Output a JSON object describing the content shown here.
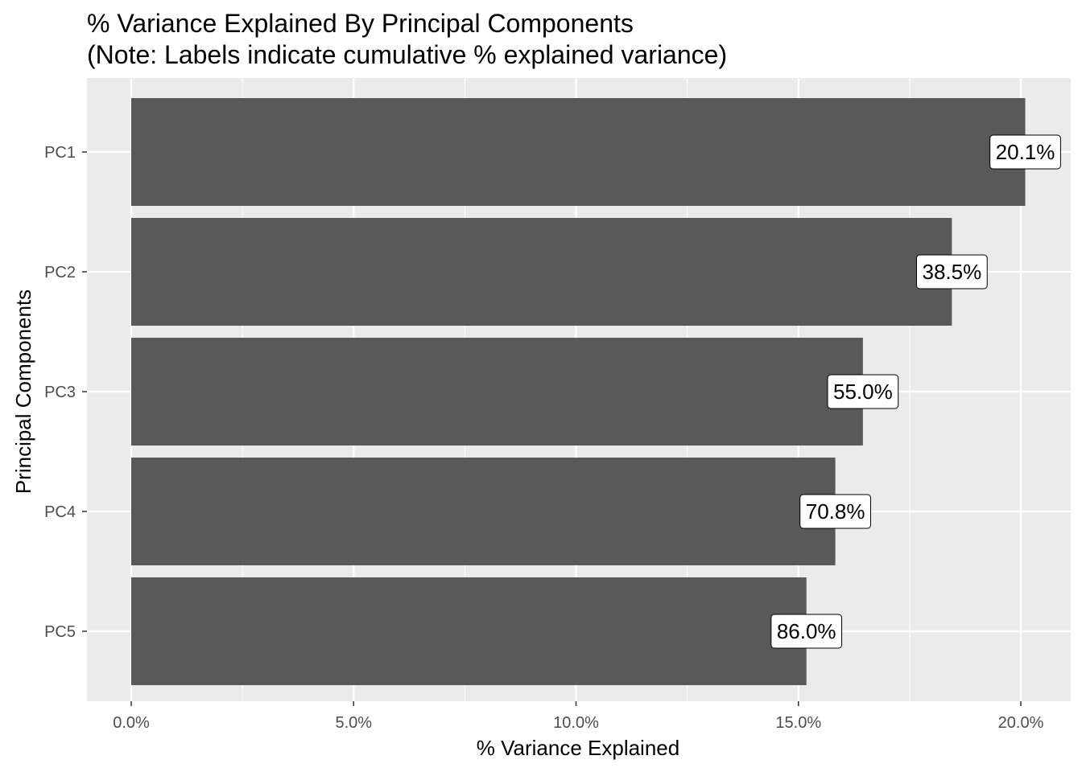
{
  "chart_data": {
    "type": "bar",
    "orientation": "horizontal",
    "title": "% Variance Explained By Principal Components",
    "subtitle": "(Note: Labels indicate cumulative % explained variance)",
    "xlabel": "% Variance Explained",
    "ylabel": "Principal Components",
    "categories": [
      "PC1",
      "PC2",
      "PC3",
      "PC4",
      "PC5"
    ],
    "values": [
      20.1,
      18.45,
      16.45,
      15.83,
      15.18
    ],
    "value_unit": "%",
    "data_labels": [
      "20.1%",
      "38.5%",
      "55.0%",
      "70.8%",
      "86.0%"
    ],
    "xlim": [
      0,
      21.5
    ],
    "xticks": [
      0,
      5,
      10,
      15,
      20
    ],
    "xtick_labels": [
      "0.0%",
      "5.0%",
      "10.0%",
      "15.0%",
      "20.0%"
    ],
    "grid": true,
    "colors": {
      "bar": "#595959",
      "panel": "#ebebeb",
      "grid": "#ffffff",
      "label_fill": "#ffffff"
    }
  }
}
